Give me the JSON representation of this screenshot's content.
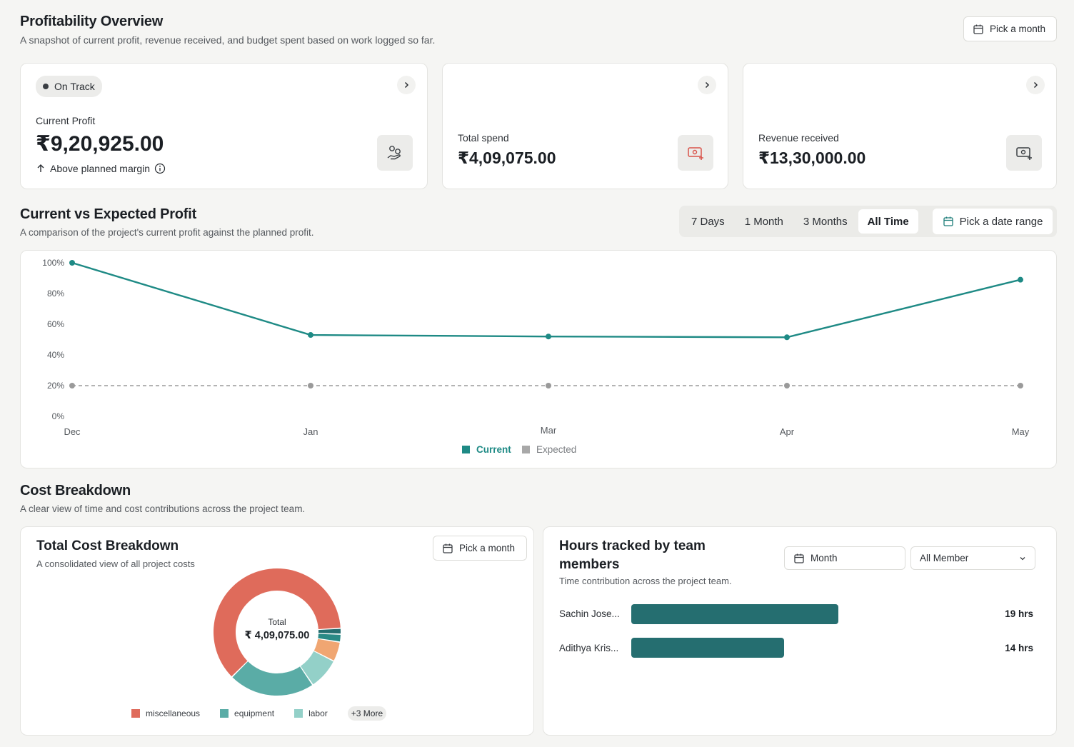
{
  "overview": {
    "title": "Profitability Overview",
    "subtitle": "A snapshot of current profit, revenue received, and budget spent based on work logged so far.",
    "pick_month": "Pick a month"
  },
  "cards": {
    "profit": {
      "badge": "On Track",
      "label": "Current Profit",
      "value": "₹9,20,925.00",
      "note": "Above planned margin",
      "icon": "hand-coins-icon"
    },
    "spend": {
      "label": "Total spend",
      "value": "₹4,09,075.00",
      "icon": "money-add-icon"
    },
    "revenue": {
      "label": "Revenue received",
      "value": "₹13,30,000.00",
      "icon": "money-add-icon"
    }
  },
  "profit_chart": {
    "title": "Current vs Expected Profit",
    "subtitle": "A comparison of the project's current profit against the planned profit.",
    "ranges": [
      "7 Days",
      "1 Month",
      "3 Months",
      "All Time"
    ],
    "active_range": "All Time",
    "date_range_button": "Pick a date range"
  },
  "chart_data": {
    "type": "line",
    "x": [
      "Dec",
      "Jan",
      "Mar",
      "Apr",
      "May"
    ],
    "series": [
      {
        "name": "Current",
        "values": [
          100,
          53,
          52,
          51.5,
          89
        ],
        "color": "#1e8a85",
        "style": "solid"
      },
      {
        "name": "Expected",
        "values": [
          20,
          20,
          20,
          20,
          20
        ],
        "color": "#9a9a9a",
        "style": "dashed"
      }
    ],
    "yticks": [
      "0%",
      "20%",
      "40%",
      "60%",
      "80%",
      "100%"
    ],
    "ylim": [
      0,
      100
    ],
    "grid": false,
    "legend": "bottom-center"
  },
  "cost": {
    "title": "Cost Breakdown",
    "subtitle": "A clear view of time and cost contributions across the project team."
  },
  "total_cost": {
    "title": "Total Cost Breakdown",
    "subtitle": "A consolidated view of all project costs",
    "pick_month": "Pick a month",
    "center_label": "Total",
    "center_value": "₹ 4,09,075.00",
    "legend": [
      {
        "name": "miscellaneous",
        "color": "#df6b5b"
      },
      {
        "name": "equipment",
        "color": "#5aaca6"
      },
      {
        "name": "labor",
        "color": "#93d0c8"
      }
    ],
    "more": "+3 More"
  },
  "donut_data": {
    "type": "pie",
    "slices": [
      {
        "name": "miscellaneous",
        "value": 61.5,
        "color": "#df6b5b"
      },
      {
        "name": "equipment",
        "value": 22,
        "color": "#5aaca6"
      },
      {
        "name": "labor",
        "value": 8,
        "color": "#93d0c8"
      },
      {
        "name": "other-1",
        "value": 5,
        "color": "#f0a672"
      },
      {
        "name": "other-2",
        "value": 2,
        "color": "#2a8a86"
      },
      {
        "name": "other-3",
        "value": 1.5,
        "color": "#256e70"
      }
    ]
  },
  "hours": {
    "title_line1": "Hours tracked by team",
    "title_line2": "members",
    "subtitle": "Time contribution across the project team.",
    "month_button": "Month",
    "member_select": "All Member",
    "max_hours": 19,
    "rows": [
      {
        "name": "Sachin Jose...",
        "hours": 19,
        "label": "19 hrs"
      },
      {
        "name": "Adithya Kris...",
        "hours": 14,
        "label": "14 hrs"
      }
    ]
  }
}
